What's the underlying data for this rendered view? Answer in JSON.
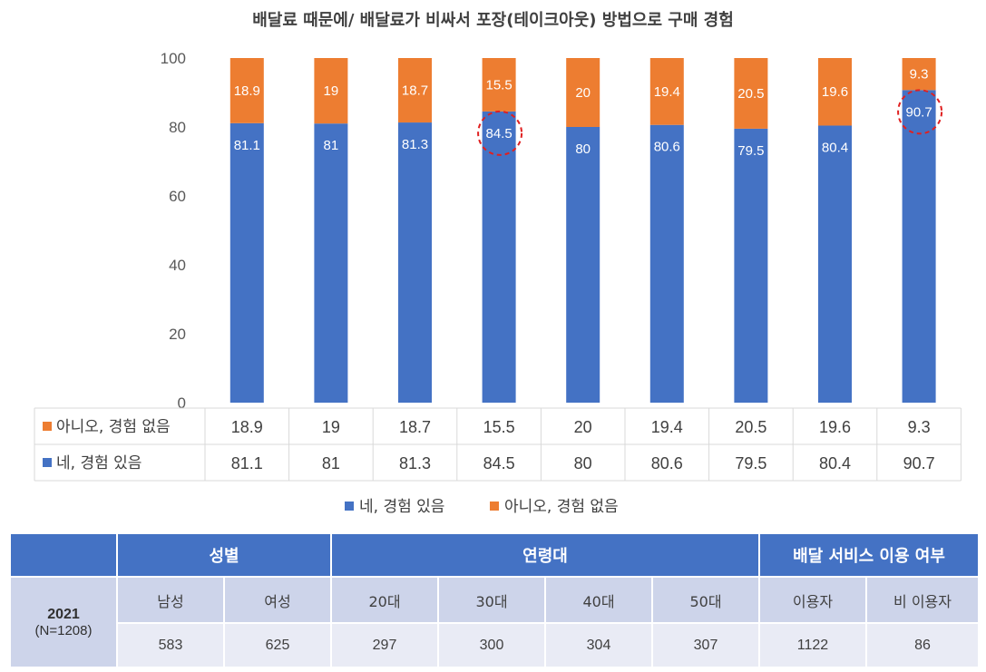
{
  "chart_data": {
    "type": "bar",
    "stacked": true,
    "title": "배달료 때문에/ 배달료가 비싸서 포장(테이크아웃) 방법으로 구매 경험",
    "ylim": [
      0,
      100
    ],
    "yticks": [
      "0",
      "20",
      "40",
      "60",
      "80",
      "100"
    ],
    "grid": false,
    "legend_position": "bottom",
    "series": [
      {
        "name": "네, 경험 있음",
        "color": "#4472c4",
        "values": [
          81.1,
          81,
          81.3,
          84.5,
          80,
          80.6,
          79.5,
          80.4,
          90.7
        ],
        "labels": [
          "81.1",
          "81",
          "81.3",
          "84.5",
          "80",
          "80.6",
          "79.5",
          "80.4",
          "90.7"
        ]
      },
      {
        "name": "아니오, 경험 없음",
        "color": "#ed7d31",
        "values": [
          18.9,
          19,
          18.7,
          15.5,
          20,
          19.4,
          20.5,
          19.6,
          9.3
        ],
        "labels": [
          "18.9",
          "19",
          "18.7",
          "15.5",
          "20",
          "19.4",
          "20.5",
          "19.6",
          "9.3"
        ]
      }
    ],
    "highlighted": [
      3,
      8
    ],
    "data_table": {
      "rows": [
        {
          "label": "아니오, 경험 없음",
          "series_index": 1
        },
        {
          "label": "네, 경험 있음",
          "series_index": 0
        }
      ]
    }
  },
  "table": {
    "corner": "",
    "groups": [
      {
        "label": "성별",
        "span": 2
      },
      {
        "label": "연령대",
        "span": 4
      },
      {
        "label": "배달 서비스 이용 여부",
        "span": 2
      }
    ],
    "year": "2021",
    "n": "(N=1208)",
    "subheaders": [
      "남성",
      "여성",
      "20대",
      "30대",
      "40대",
      "50대",
      "이용자",
      "비 이용자"
    ],
    "values": [
      "583",
      "625",
      "297",
      "300",
      "304",
      "307",
      "1122",
      "86"
    ]
  }
}
